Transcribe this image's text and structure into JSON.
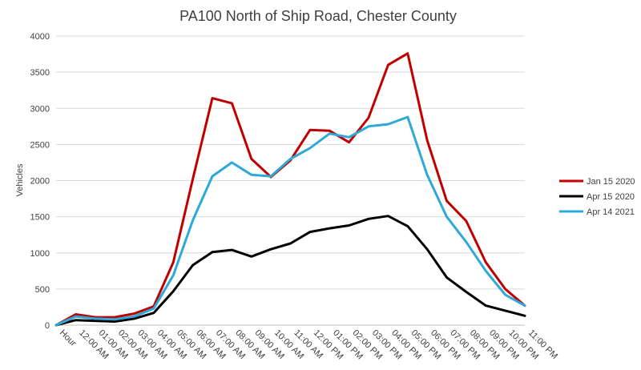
{
  "chart_data": {
    "type": "line",
    "title": "PA100 North of Ship Road, Chester County",
    "xlabel": "",
    "ylabel": "Vehicles",
    "ylim": [
      0,
      4000
    ],
    "yticks": [
      0,
      500,
      1000,
      1500,
      2000,
      2500,
      3000,
      3500,
      4000
    ],
    "grid": true,
    "legend_position": "right",
    "categories": [
      "Hour",
      "12:00 AM",
      "01:00 AM",
      "02:00 AM",
      "03:00 AM",
      "04:00 AM",
      "05:00 AM",
      "06:00 AM",
      "07:00 AM",
      "08:00 AM",
      "09:00 AM",
      "10:00 AM",
      "11:00 AM",
      "12:00 PM",
      "01:00 PM",
      "02:00 PM",
      "03:00 PM",
      "04:00 PM",
      "05:00 PM",
      "06:00 PM",
      "07:00 PM",
      "08:00 PM",
      "09:00 PM",
      "10:00 PM",
      "11:00 PM"
    ],
    "series": [
      {
        "name": "Jan 15 2020",
        "color": "#c00000",
        "values": [
          0,
          150,
          110,
          110,
          160,
          260,
          870,
          2020,
          3140,
          3070,
          2300,
          2050,
          2280,
          2700,
          2690,
          2530,
          2870,
          3600,
          3760,
          2560,
          1720,
          1440,
          870,
          500,
          270
        ]
      },
      {
        "name": "Apr 15 2020",
        "color": "#000000",
        "values": [
          0,
          70,
          60,
          50,
          90,
          170,
          470,
          830,
          1010,
          1040,
          950,
          1050,
          1130,
          1290,
          1340,
          1380,
          1470,
          1510,
          1370,
          1050,
          660,
          460,
          270,
          200,
          130
        ]
      },
      {
        "name": "Apr 14 2021",
        "color": "#2ea9d7",
        "values": [
          0,
          120,
          90,
          80,
          120,
          230,
          690,
          1450,
          2060,
          2250,
          2080,
          2060,
          2300,
          2450,
          2650,
          2600,
          2750,
          2780,
          2880,
          2080,
          1500,
          1150,
          750,
          420,
          270
        ]
      }
    ]
  }
}
